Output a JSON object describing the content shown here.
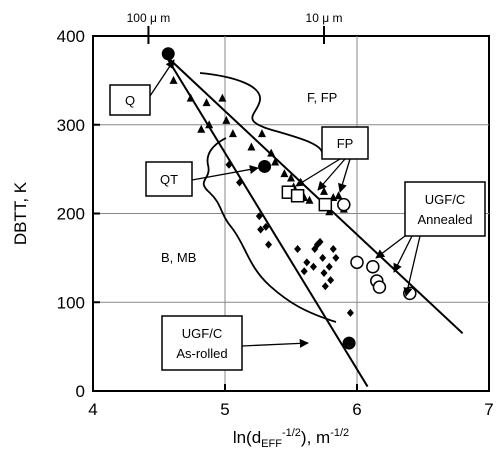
{
  "chart_data": {
    "type": "scatter",
    "xlabel": "ln(dₑₒₒ⁻¹⁄²), m⁻¹⁄²",
    "xlabel_parts": {
      "pre": "ln(d",
      "sub": "EFF",
      "sup": "-1/2",
      "post": "), m",
      "sup2": "-1/2"
    },
    "ylabel": "DBTT, K",
    "xlim": [
      4,
      7
    ],
    "ylim": [
      0,
      400
    ],
    "x_ticks": [
      "4",
      "5",
      "6",
      "7"
    ],
    "y_ticks": [
      "0",
      "100",
      "200",
      "300",
      "400"
    ],
    "x_tick_values": [
      4,
      5,
      6,
      7
    ],
    "y_tick_values": [
      0,
      100,
      200,
      300,
      400
    ],
    "top_axis": {
      "labels": [
        "100µm",
        "10µm"
      ],
      "label_text": [
        "100 μ m",
        "10 μ m"
      ],
      "positions": [
        4.42,
        5.75
      ]
    },
    "grid": true,
    "series": [
      {
        "marker": "triangle",
        "points": [
          [
            4.61,
            350
          ],
          [
            4.74,
            330
          ],
          [
            4.82,
            295
          ],
          [
            4.86,
            325
          ],
          [
            4.88,
            300
          ],
          [
            4.98,
            330
          ],
          [
            5.01,
            305
          ],
          [
            5.06,
            290
          ],
          [
            5.2,
            275
          ],
          [
            5.28,
            290
          ],
          [
            5.35,
            268
          ],
          [
            5.38,
            258
          ],
          [
            5.45,
            245
          ],
          [
            5.5,
            240
          ],
          [
            5.52,
            230
          ],
          [
            5.55,
            222
          ],
          [
            5.6,
            218
          ],
          [
            5.64,
            215
          ],
          [
            5.75,
            225
          ],
          [
            5.79,
            202
          ],
          [
            5.82,
            218
          ],
          [
            5.86,
            220
          ],
          [
            5.9,
            205
          ]
        ]
      },
      {
        "marker": "diamond",
        "points": [
          [
            5.03,
            255
          ],
          [
            5.11,
            235
          ],
          [
            5.26,
            197
          ],
          [
            5.27,
            182
          ],
          [
            5.31,
            185
          ],
          [
            5.33,
            165
          ],
          [
            5.55,
            160
          ],
          [
            5.62,
            145
          ],
          [
            5.67,
            140
          ],
          [
            5.68,
            160
          ],
          [
            5.7,
            165
          ],
          [
            5.74,
            150
          ],
          [
            5.75,
            133
          ],
          [
            5.79,
            140
          ],
          [
            5.8,
            125
          ],
          [
            5.82,
            160
          ],
          [
            5.84,
            150
          ],
          [
            5.72,
            168
          ],
          [
            5.6,
            135
          ],
          [
            5.76,
            118
          ],
          [
            5.95,
            88
          ]
        ]
      },
      {
        "marker": "filled-circle",
        "points": [
          [
            4.57,
            380
          ],
          [
            5.3,
            253
          ],
          [
            5.94,
            54
          ]
        ]
      },
      {
        "marker": "open-square",
        "points": [
          [
            5.48,
            224
          ],
          [
            5.55,
            220
          ],
          [
            5.76,
            210
          ]
        ]
      },
      {
        "marker": "open-circle",
        "points": [
          [
            5.9,
            210
          ],
          [
            6.0,
            145
          ],
          [
            6.12,
            140
          ],
          [
            6.15,
            124
          ],
          [
            6.17,
            117
          ],
          [
            6.4,
            110
          ]
        ]
      }
    ],
    "lines": [
      {
        "from": [
          4.55,
          378
        ],
        "to": [
          6.8,
          65
        ]
      },
      {
        "from": [
          4.55,
          378
        ],
        "to": [
          6.08,
          5
        ]
      }
    ],
    "annotations": [
      {
        "id": "q",
        "text": "Q"
      },
      {
        "id": "qt",
        "text": "QT"
      },
      {
        "id": "fp_box",
        "text": "FP"
      },
      {
        "id": "f_fp",
        "text": "F, FP"
      },
      {
        "id": "b_mb",
        "text": "B, MB"
      },
      {
        "id": "ugf_annealed",
        "lines": [
          "UGF/C",
          "Annealed"
        ]
      },
      {
        "id": "ugf_asrolled",
        "lines": [
          "UGF/C",
          "As-rolled"
        ]
      }
    ]
  }
}
